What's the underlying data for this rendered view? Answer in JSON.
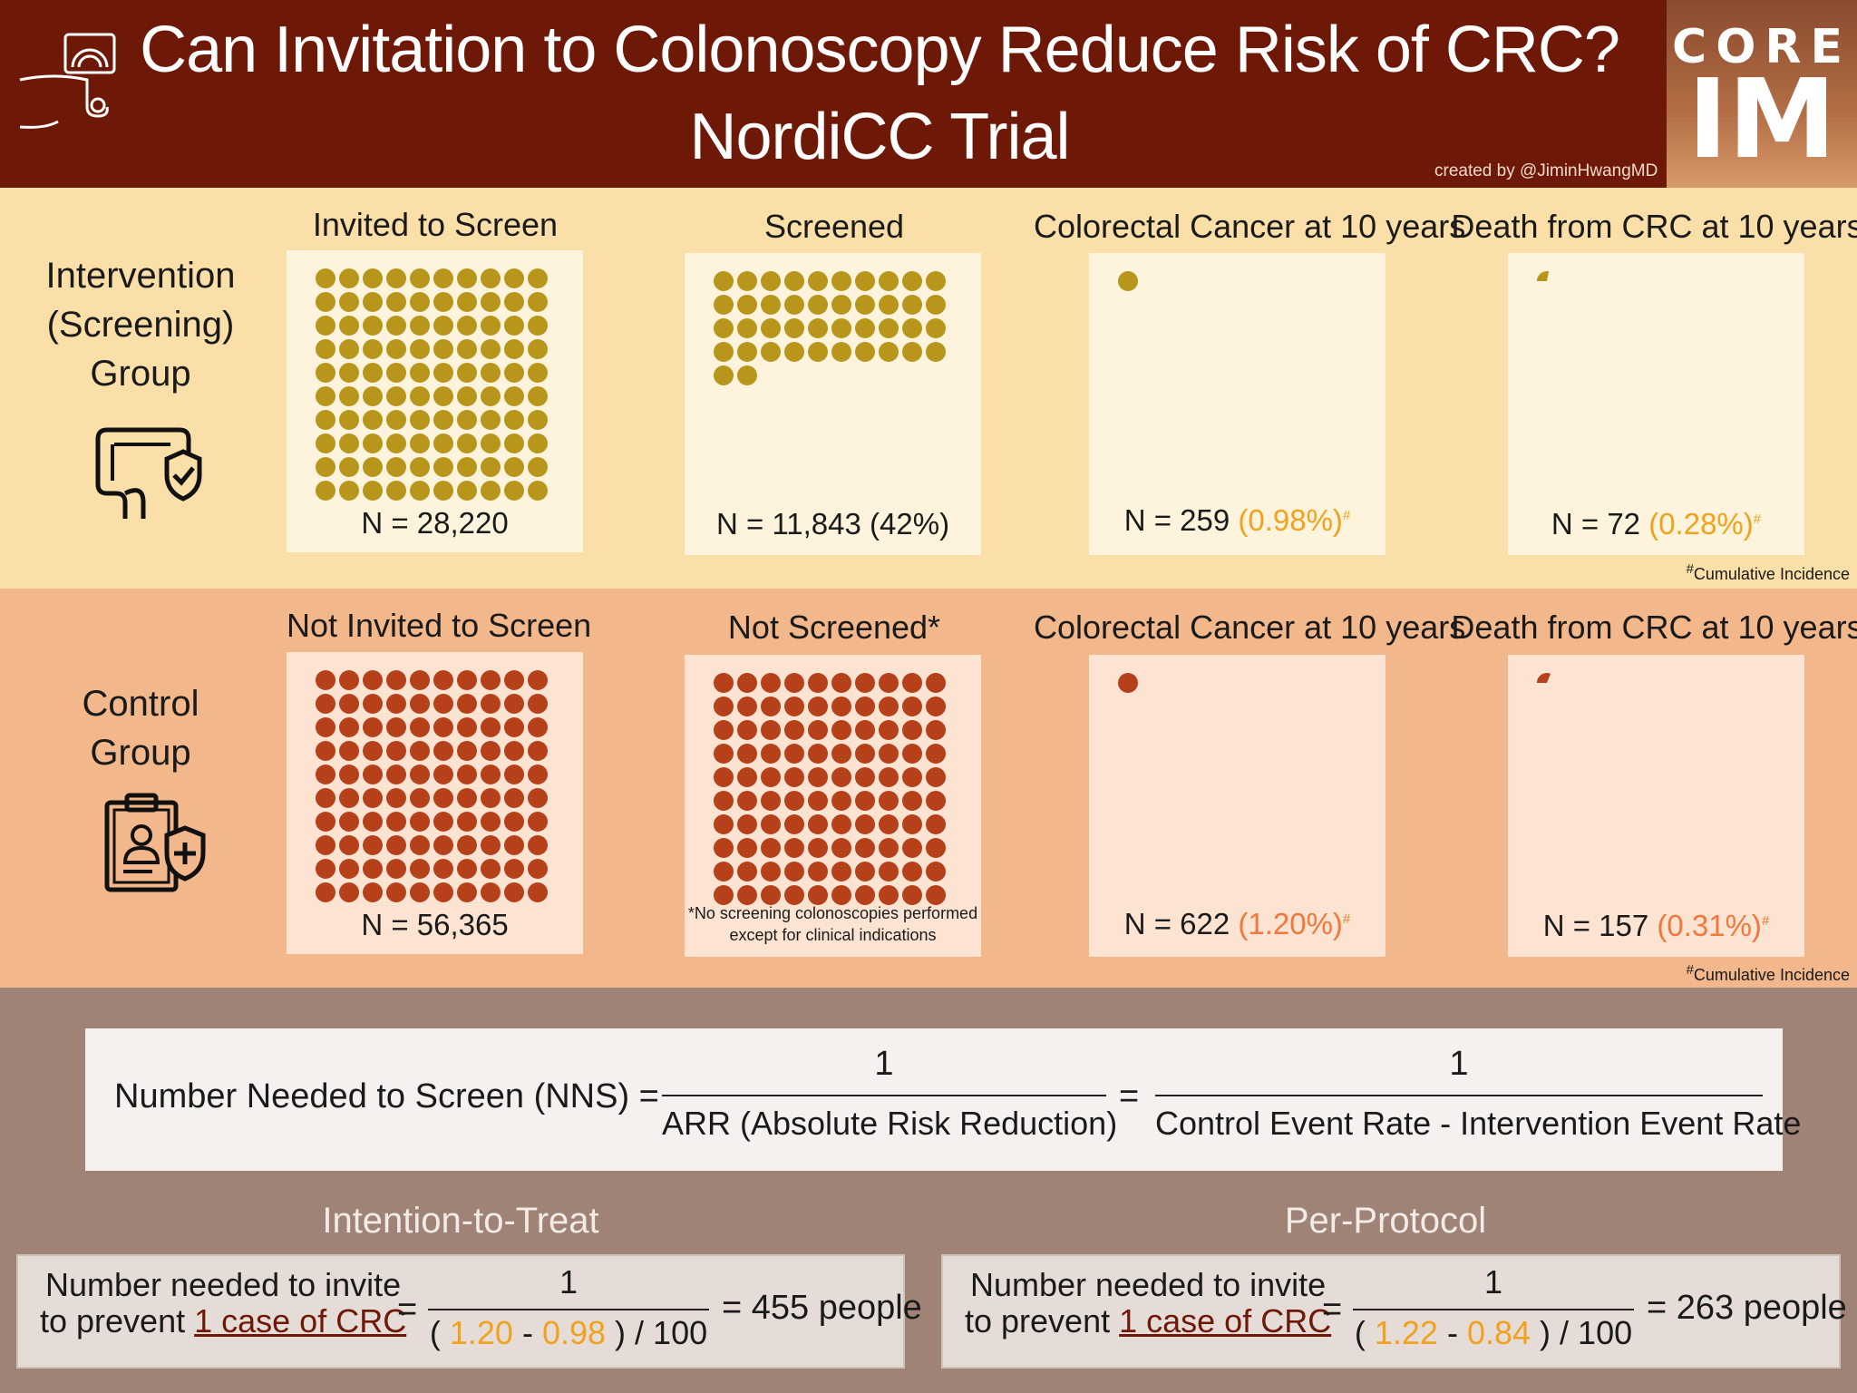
{
  "header": {
    "title_line1": "Can Invitation to Colonoscopy Reduce Risk of CRC?",
    "title_line2": "NordiCC Trial",
    "credit": "created by @JiminHwangMD",
    "logo_top": "CORE",
    "logo_bottom": "IM"
  },
  "intervention": {
    "group_label_1": "Intervention",
    "group_label_2": "(Screening)",
    "group_label_3": "Group",
    "cols": [
      {
        "title": "Invited to Screen",
        "n": "N = 28,220",
        "pct": "",
        "dots": 100
      },
      {
        "title": "Screened",
        "n": "N = 11,843 (42%)",
        "pct": "",
        "dots": 42
      },
      {
        "title": "Colorectal Cancer at 10 years",
        "n": "N = 259 ",
        "pct": "(0.98%)",
        "dots": 1
      },
      {
        "title": "Death from CRC at 10 years",
        "n": "N = 72 ",
        "pct": "(0.28%)",
        "dots": 0.28
      }
    ],
    "footnote": "Cumulative Incidence",
    "dot_color": "#b8961b"
  },
  "control": {
    "group_label_1": "Control",
    "group_label_2": "Group",
    "cols": [
      {
        "title": "Not Invited to Screen",
        "n": "N = 56,365",
        "pct": "",
        "dots": 100
      },
      {
        "title": "Not Screened*",
        "n": "",
        "pct": "",
        "dots": 100
      },
      {
        "title": "Colorectal Cancer at 10 years",
        "n": "N = 622 ",
        "pct": "(1.20%)",
        "dots": 1
      },
      {
        "title": "Death from CRC at 10 years",
        "n": "N = 157 ",
        "pct": "(0.31%)",
        "dots": 0.31
      }
    ],
    "not_screened_note_1": "*No screening colonoscopies performed",
    "not_screened_note_2": "except for clinical indications",
    "footnote": "Cumulative Incidence",
    "dot_color": "#b5401a"
  },
  "formula": {
    "lhs": "Number Needed to Screen (NNS) =",
    "num1": "1",
    "den1": "ARR (Absolute Risk Reduction)",
    "eq": "=",
    "num2": "1",
    "den2": "Control Event Rate - Intervention Event Rate"
  },
  "itt": {
    "title": "Intention-to-Treat",
    "line1": "Number needed to invite",
    "line2a": "to prevent ",
    "line2b": "1 case of CRC",
    "eq": "=",
    "num": "1",
    "den_a": "( ",
    "control_rate": "1.20",
    "minus": " - ",
    "intervention_rate": "0.98",
    "den_b": " ) / 100",
    "result": "= 455 people"
  },
  "pp": {
    "title": "Per-Protocol",
    "line1": "Number needed to invite",
    "line2a": "to prevent ",
    "line2b": "1 case of CRC",
    "eq": "=",
    "num": "1",
    "den_a": "( ",
    "control_rate": "1.22",
    "minus": " - ",
    "intervention_rate": "0.84",
    "den_b": " ) / 100",
    "result": "= 263 people"
  },
  "footnote_mark": "#"
}
